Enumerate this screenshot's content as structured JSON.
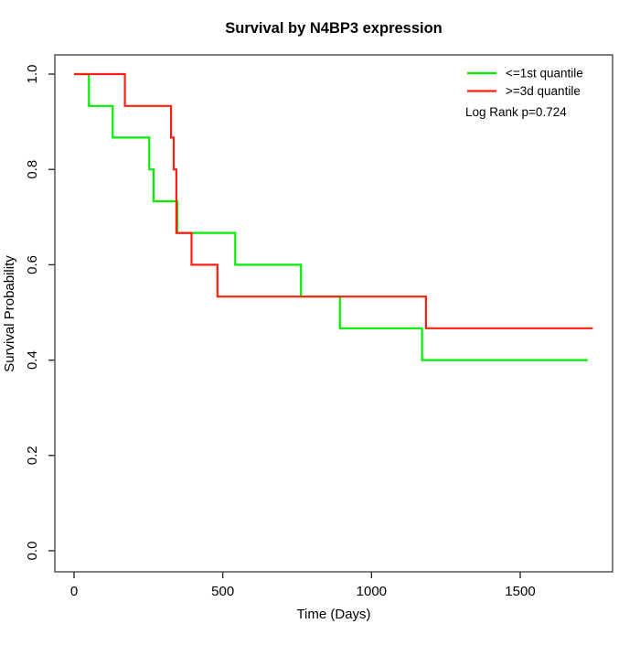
{
  "chart_data": {
    "type": "line",
    "subtype": "kaplan-meier-step-curves",
    "title": "Survival by N4BP3 expression",
    "xlabel": "Time (Days)",
    "ylabel": "Survival Probability",
    "xlim": [
      0,
      1810
    ],
    "ylim": [
      0.0,
      1.0
    ],
    "xticks": [
      0,
      500,
      1000,
      1500
    ],
    "xtick_labels": [
      "0",
      "500",
      "1000",
      "1500"
    ],
    "yticks": [
      0.0,
      0.2,
      0.4,
      0.6,
      0.8,
      1.0
    ],
    "ytick_labels": [
      "0.0",
      "0.2",
      "0.4",
      "0.6",
      "0.8",
      "1.0"
    ],
    "grid": false,
    "legend_position": "top-right",
    "annotation": "Log Rank p=0.724",
    "series": [
      {
        "key": "first-quantile",
        "name": "<=1st quantile",
        "color": "#00EE00",
        "points": [
          [
            0,
            1.0
          ],
          [
            50,
            0.9333
          ],
          [
            130,
            0.8667
          ],
          [
            253,
            0.8
          ],
          [
            267,
            0.7333
          ],
          [
            347,
            0.6667
          ],
          [
            542,
            0.6
          ],
          [
            763,
            0.5333
          ],
          [
            894,
            0.4667
          ],
          [
            1170,
            0.4
          ],
          [
            1727,
            0.4
          ]
        ]
      },
      {
        "key": "third-quantile",
        "name": ">=3d quantile",
        "color": "#FF1F12",
        "points": [
          [
            0,
            1.0
          ],
          [
            171,
            0.9333
          ],
          [
            326,
            0.8667
          ],
          [
            335,
            0.8
          ],
          [
            344,
            0.6667
          ],
          [
            395,
            0.6
          ],
          [
            482,
            0.5333
          ],
          [
            1183,
            0.4667
          ],
          [
            1744,
            0.4667
          ]
        ]
      }
    ]
  }
}
